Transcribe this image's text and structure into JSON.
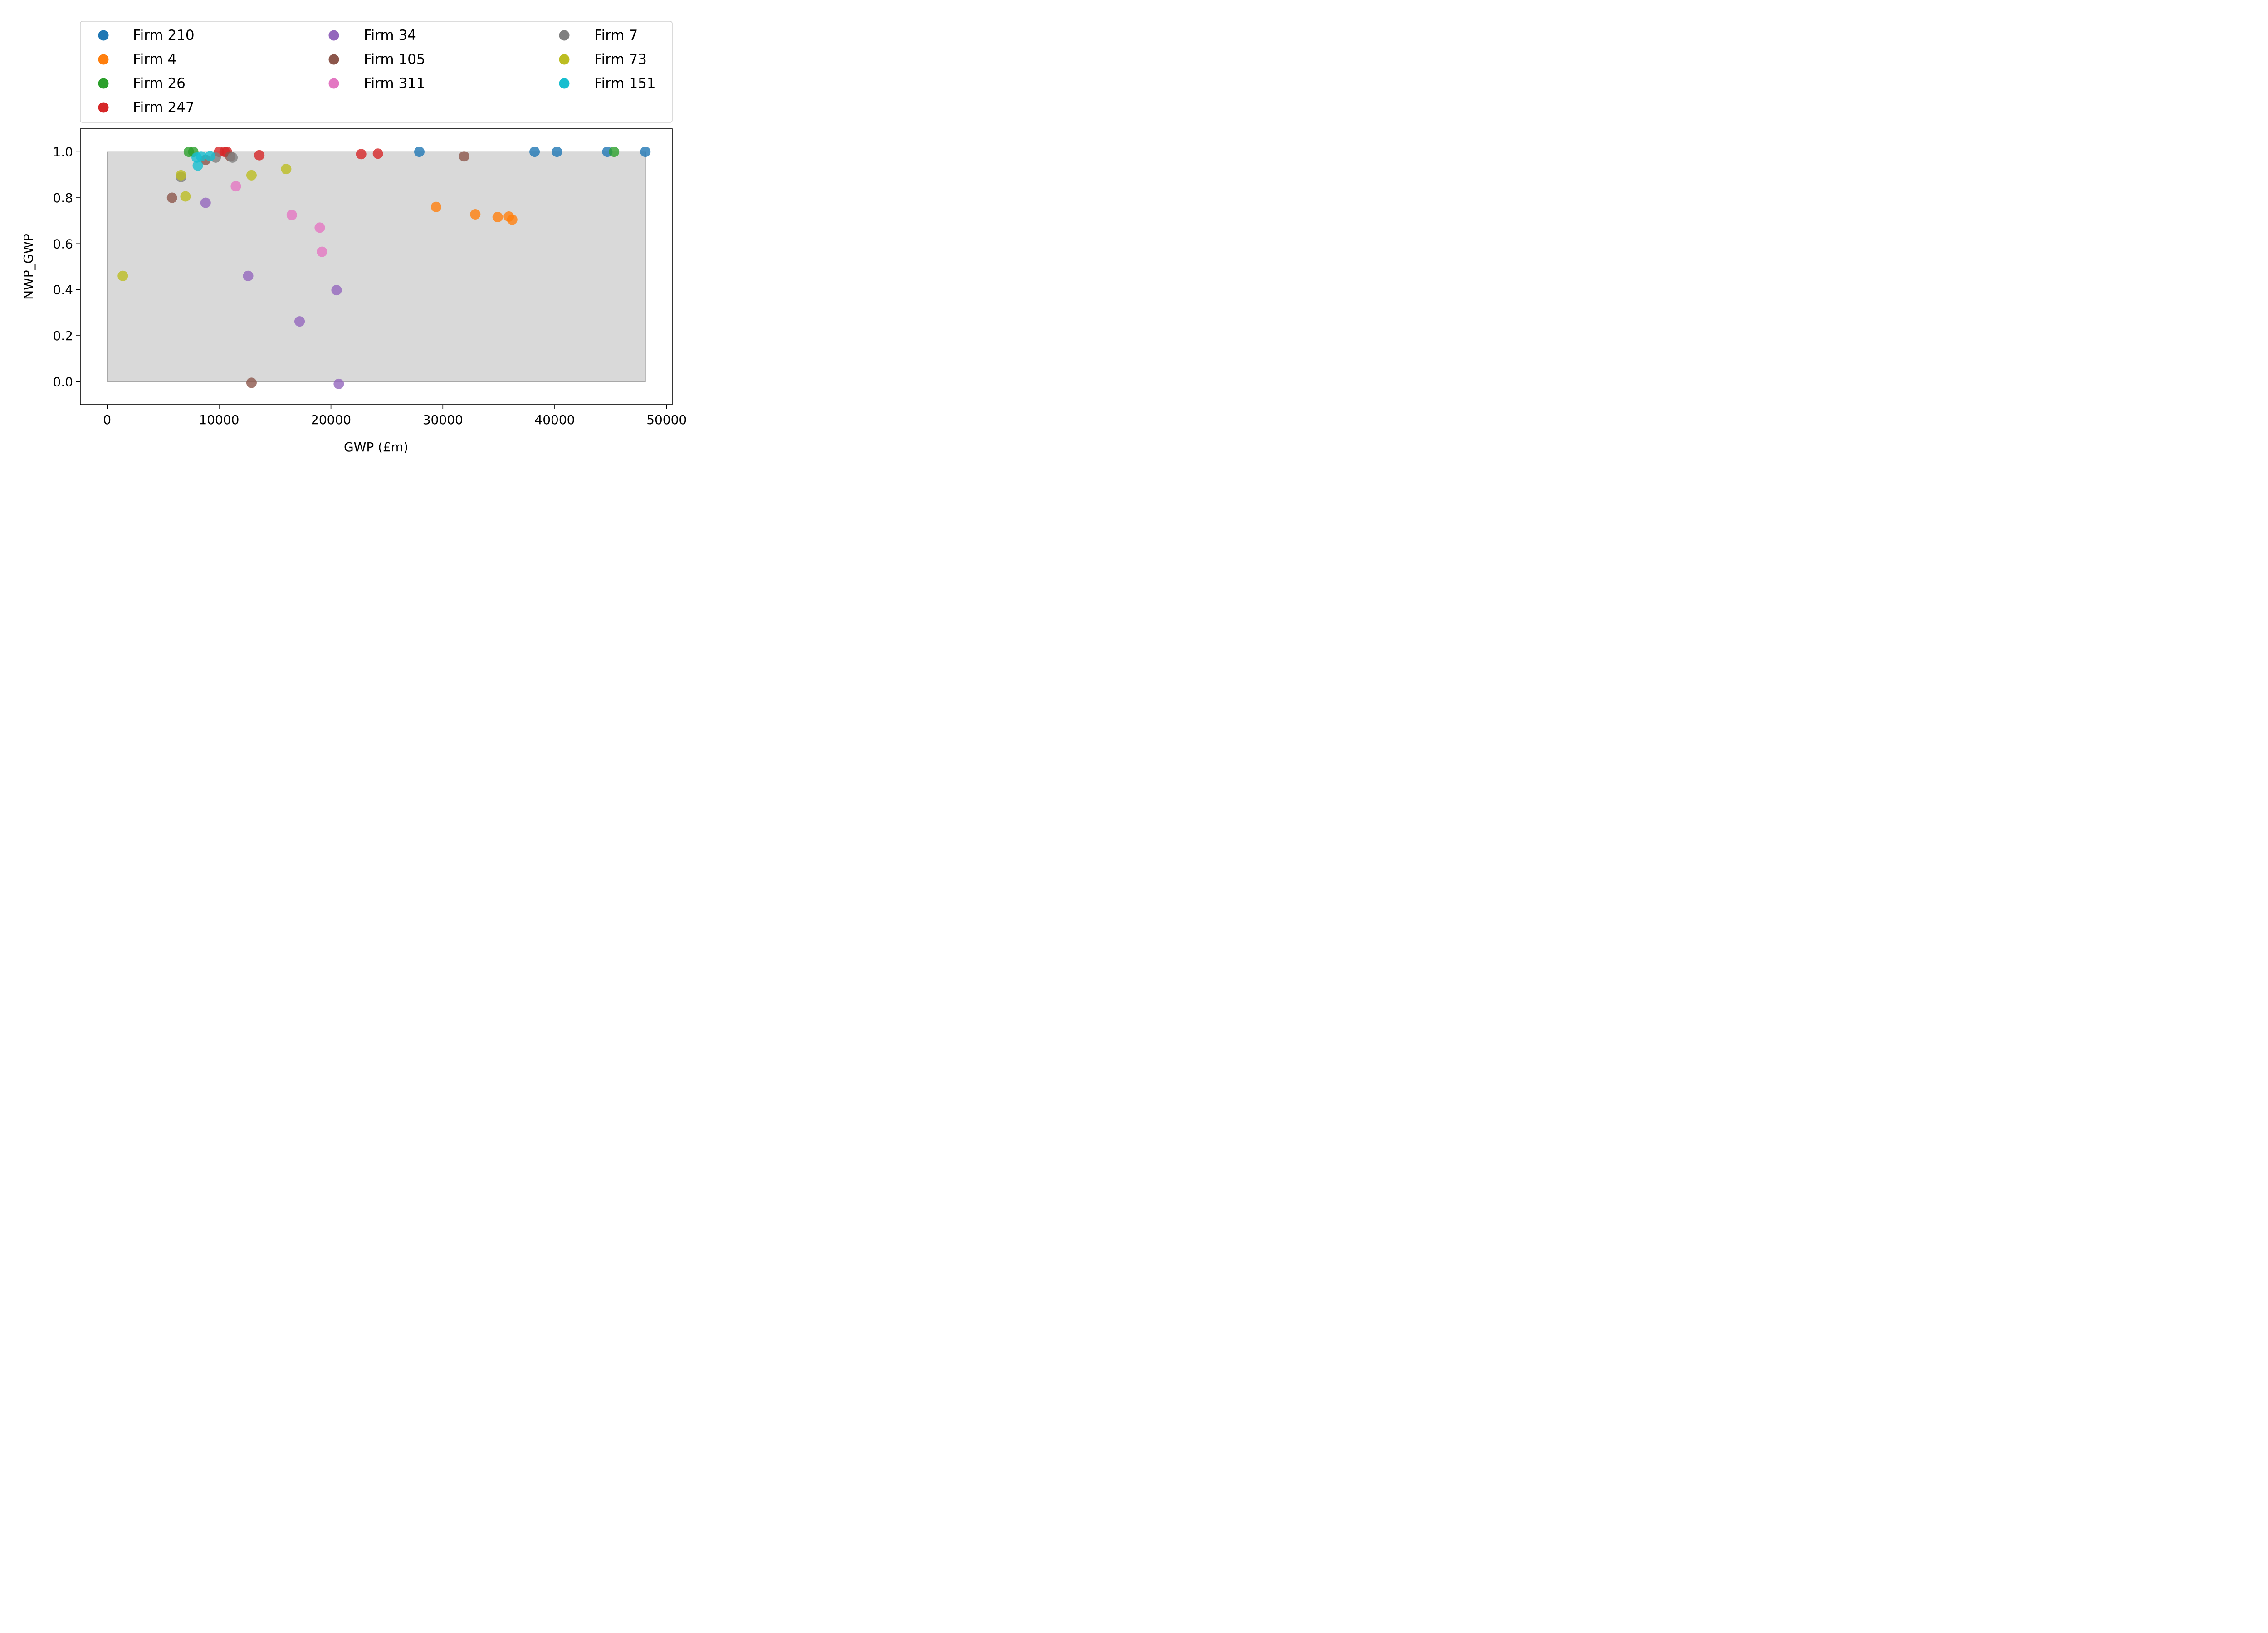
{
  "chart_data": {
    "type": "scatter",
    "title": "",
    "xlabel": "GWP (£m)",
    "ylabel": "NWP_GWP",
    "xlim": [
      -2400,
      50500
    ],
    "ylim": [
      -0.1,
      1.1
    ],
    "xticks": [
      0,
      10000,
      20000,
      30000,
      40000,
      50000
    ],
    "yticks": [
      0.0,
      0.2,
      0.4,
      0.6,
      0.8,
      1.0
    ],
    "xtick_labels": [
      "0",
      "10000",
      "20000",
      "30000",
      "40000",
      "50000"
    ],
    "ytick_labels": [
      "0.0",
      "0.2",
      "0.4",
      "0.6",
      "0.8",
      "1.0"
    ],
    "grid": false,
    "legend": "top-outside-3-columns",
    "shaded_region": {
      "x": [
        0,
        48100
      ],
      "y": [
        0,
        1
      ],
      "color": "#bfbfbf"
    },
    "series": [
      {
        "name": "Firm 210",
        "color": "#1f77b4",
        "points": [
          [
            27900,
            1.0
          ],
          [
            38200,
            1.0
          ],
          [
            40200,
            1.0
          ],
          [
            44700,
            1.0
          ],
          [
            48100,
            1.0
          ]
        ]
      },
      {
        "name": "Firm 4",
        "color": "#ff7f0e",
        "points": [
          [
            29400,
            0.76
          ],
          [
            32900,
            0.728
          ],
          [
            34900,
            0.716
          ],
          [
            35900,
            0.718
          ],
          [
            36200,
            0.705
          ]
        ]
      },
      {
        "name": "Firm 26",
        "color": "#2ca02c",
        "points": [
          [
            7300,
            1.0
          ],
          [
            7700,
            1.0
          ],
          [
            45300,
            1.0
          ]
        ]
      },
      {
        "name": "Firm 247",
        "color": "#d62728",
        "points": [
          [
            10000,
            1.0
          ],
          [
            10500,
            1.0
          ],
          [
            10700,
            1.0
          ],
          [
            13600,
            0.985
          ],
          [
            22700,
            0.99
          ],
          [
            24200,
            0.992
          ]
        ]
      },
      {
        "name": "Firm 34",
        "color": "#9467bd",
        "points": [
          [
            8800,
            0.778
          ],
          [
            12600,
            0.46
          ],
          [
            17200,
            0.262
          ],
          [
            20500,
            0.398
          ],
          [
            20700,
            -0.01
          ]
        ]
      },
      {
        "name": "Firm 105",
        "color": "#8c564b",
        "points": [
          [
            5800,
            0.8
          ],
          [
            8800,
            0.965
          ],
          [
            11000,
            0.98
          ],
          [
            12900,
            -0.005
          ],
          [
            31900,
            0.98
          ]
        ]
      },
      {
        "name": "Firm 311",
        "color": "#e377c2",
        "points": [
          [
            11500,
            0.85
          ],
          [
            16500,
            0.725
          ],
          [
            19000,
            0.67
          ],
          [
            19200,
            0.565
          ]
        ]
      },
      {
        "name": "Firm 7",
        "color": "#7f7f7f",
        "points": [
          [
            6600,
            0.89
          ],
          [
            9700,
            0.975
          ],
          [
            11200,
            0.975
          ]
        ]
      },
      {
        "name": "Firm 73",
        "color": "#bcbd22",
        "points": [
          [
            1400,
            0.46
          ],
          [
            6600,
            0.898
          ],
          [
            7000,
            0.806
          ],
          [
            12900,
            0.898
          ],
          [
            16000,
            0.925
          ]
        ]
      },
      {
        "name": "Firm 151",
        "color": "#17becf",
        "points": [
          [
            8000,
            0.975
          ],
          [
            8100,
            0.94
          ],
          [
            8400,
            0.98
          ],
          [
            9200,
            0.982
          ]
        ]
      }
    ]
  }
}
